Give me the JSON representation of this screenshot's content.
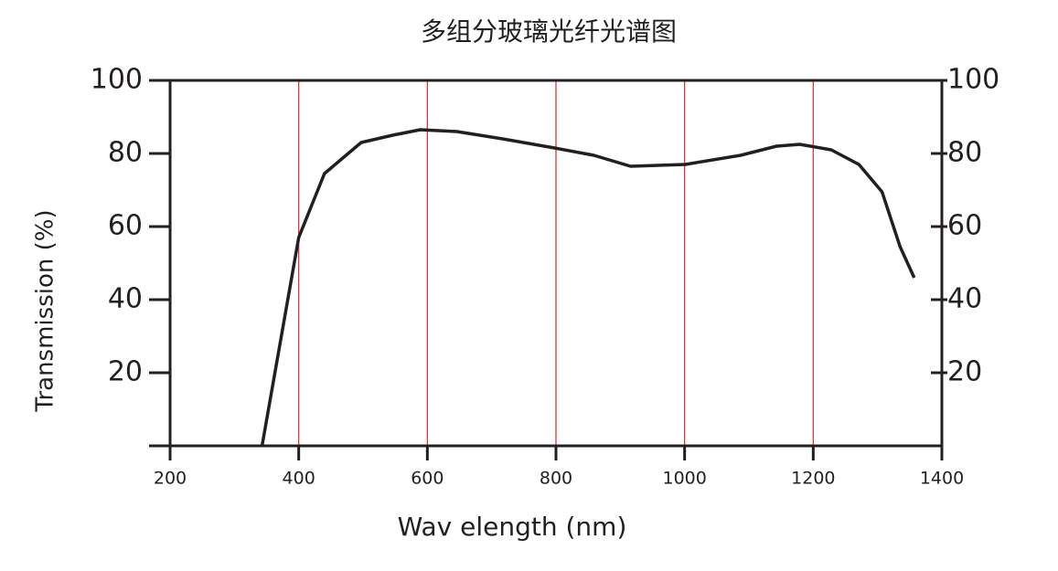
{
  "chart_data": {
    "type": "line",
    "title": "多组分玻璃光纤光谱图",
    "x_label": "Wav elength (nm)",
    "y_label": "Transmission (%)",
    "x": [
      343,
      400,
      440,
      497,
      546,
      589,
      646,
      717,
      798,
      859,
      916,
      1001,
      1087,
      1143,
      1179,
      1228,
      1271,
      1307,
      1335,
      1357
    ],
    "values": [
      0,
      57,
      74.5,
      83,
      85,
      86.5,
      86,
      84,
      81.5,
      79.5,
      76.5,
      77,
      79.5,
      82,
      82.5,
      81,
      77,
      69.5,
      54.5,
      46
    ],
    "color": "#231f20",
    "xlim": [
      200,
      1400
    ],
    "xticks": [
      200,
      400,
      600,
      800,
      1000,
      1200,
      1400
    ],
    "ylim": [
      0,
      100
    ],
    "yticks": [
      20,
      40,
      60,
      80,
      100
    ],
    "y2lim": [
      0,
      100
    ],
    "y2ticks": [
      20,
      40,
      60,
      80,
      100
    ],
    "grid": true,
    "grid_color": "#e0242b"
  }
}
